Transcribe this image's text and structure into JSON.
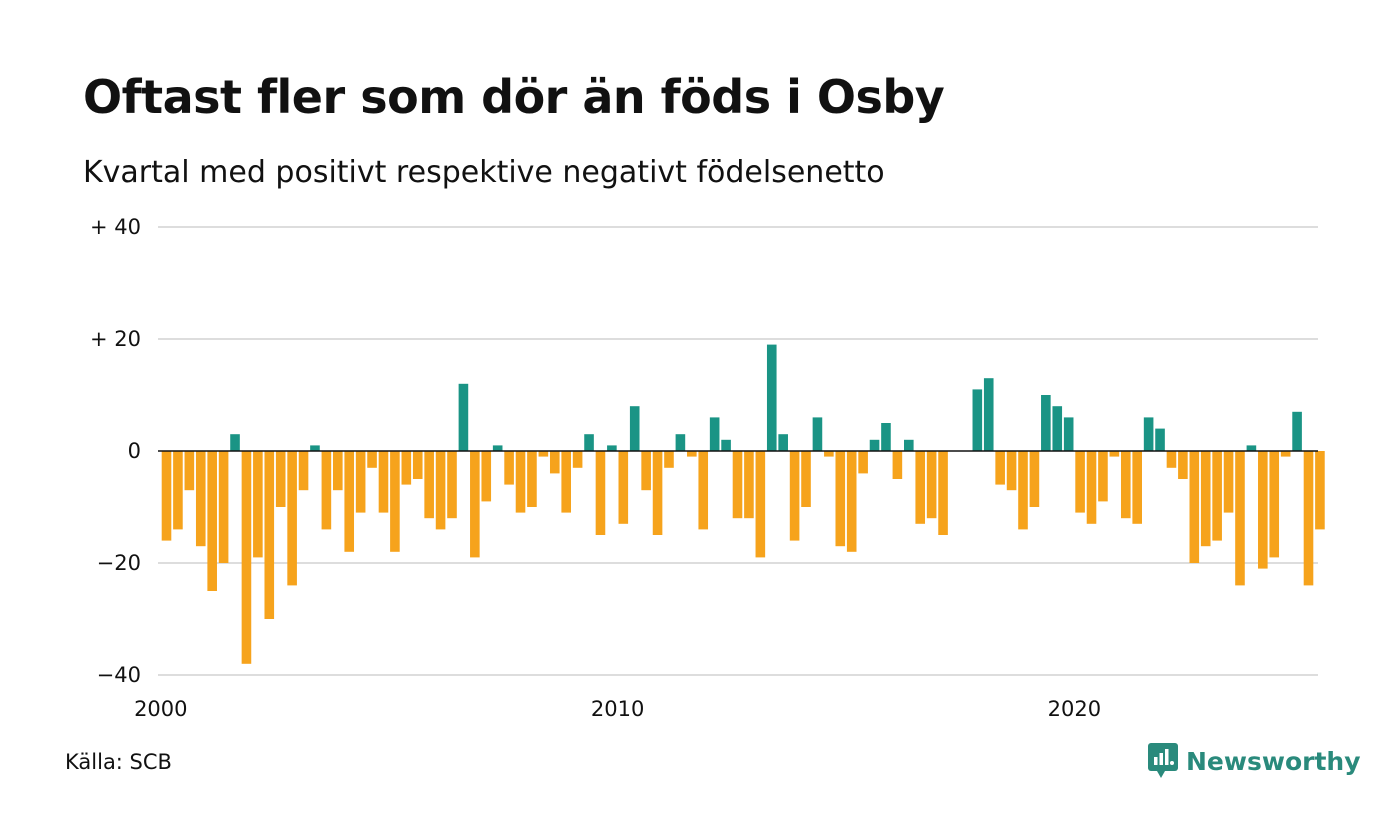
{
  "title": "Oftast fler som dör än föds i Osby",
  "subtitle": "Kvartal med positivt respektive negativt födelsenetto",
  "source": "Källa: SCB",
  "brand": {
    "name": "Newsworthy",
    "icon": "newsworthy-logo-icon"
  },
  "colors": {
    "positive": "#1a9485",
    "negative": "#f6a31c",
    "grid": "#dddddd",
    "zero_line": "#111111"
  },
  "chart_data": {
    "type": "bar",
    "title": "Oftast fler som dör än föds i Osby",
    "subtitle": "Kvartal med positivt respektive negativt födelsenetto",
    "xlabel": "",
    "ylabel": "",
    "ylim": [
      -40,
      40
    ],
    "grid": true,
    "legend": "none",
    "x_ticks": [
      {
        "value": 2000,
        "label": "2000"
      },
      {
        "value": 2010,
        "label": "2010"
      },
      {
        "value": 2020,
        "label": "2020"
      }
    ],
    "y_ticks": [
      {
        "value": 40,
        "label": "+ 40"
      },
      {
        "value": 20,
        "label": "+ 20"
      },
      {
        "value": 0,
        "label": "0"
      },
      {
        "value": -20,
        "label": "−20"
      },
      {
        "value": -40,
        "label": "−40"
      }
    ],
    "x_start": "2000 Q1",
    "x_end": "2025 Q2",
    "frequency": "quarterly",
    "values": [
      -16,
      -14,
      -7,
      -17,
      -25,
      -20,
      3,
      -38,
      -19,
      -30,
      -10,
      -24,
      -7,
      1,
      -14,
      -7,
      -18,
      -11,
      -3,
      -11,
      -18,
      -6,
      -5,
      -12,
      -14,
      -12,
      12,
      -19,
      -9,
      1,
      -6,
      -11,
      -10,
      -1,
      -4,
      -11,
      -3,
      3,
      -15,
      1,
      -13,
      8,
      -7,
      -15,
      -3,
      3,
      -1,
      -14,
      6,
      2,
      -12,
      -12,
      -19,
      19,
      3,
      -16,
      -10,
      6,
      -1,
      -17,
      -18,
      -4,
      2,
      5,
      -5,
      2,
      -13,
      -12,
      -15,
      0,
      0,
      11,
      13,
      -6,
      -7,
      -14,
      -10,
      10,
      8,
      6,
      -11,
      -13,
      -9,
      -1,
      -12,
      -13,
      6,
      4,
      -3,
      -5,
      -20,
      -17,
      -16,
      -11,
      -24,
      1,
      -21,
      -19,
      -1,
      7,
      -24,
      -14
    ]
  }
}
